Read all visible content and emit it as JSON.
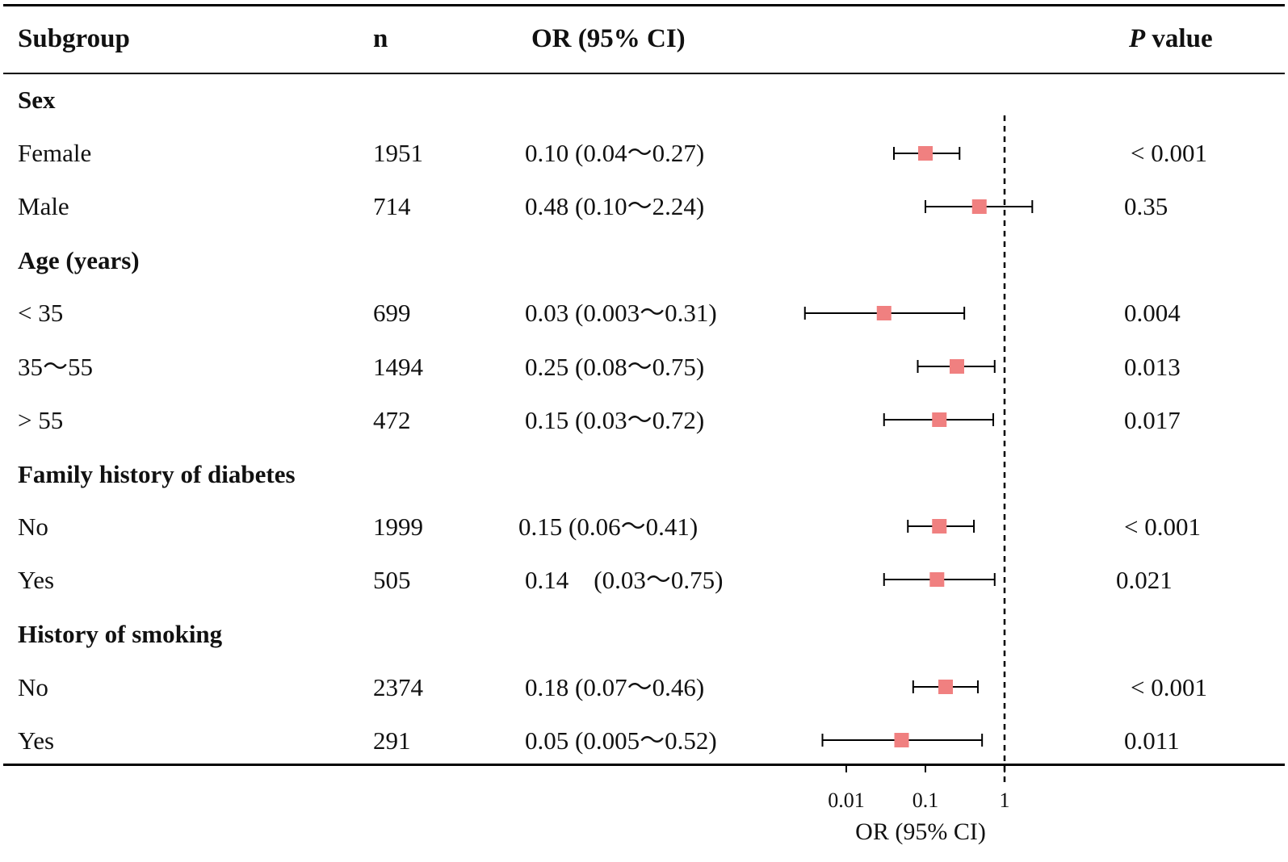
{
  "header": {
    "subgroup": "Subgroup",
    "n": "n",
    "or_ci": "OR (95% CI)",
    "p_italic": "P",
    "p_rest": " value"
  },
  "rows": [
    {
      "kind": "group",
      "label": "Sex"
    },
    {
      "kind": "item",
      "label": "Female",
      "n": "1951",
      "ci_text": "0.10 (0.04～0.27)",
      "p": "< 0.001"
    },
    {
      "kind": "item",
      "label": "Male",
      "n": "714",
      "ci_text": "0.48 (0.10～2.24)",
      "p": "0.35"
    },
    {
      "kind": "group",
      "label": "Age (years)"
    },
    {
      "kind": "item",
      "label": " < 35",
      "n": "699",
      "ci_text": "0.03 (0.003～0.31)",
      "p": "0.004"
    },
    {
      "kind": "item",
      "label": "35～55",
      "n": "1494",
      "ci_text": "0.25 (0.08～0.75)",
      "p": "0.013"
    },
    {
      "kind": "item",
      "label": " > 55",
      "n": "472",
      "ci_text": "0.15 (0.03～0.72)",
      "p": "0.017"
    },
    {
      "kind": "group",
      "label": "Family history of diabetes"
    },
    {
      "kind": "item",
      "label": "No",
      "n": "1999",
      "ci_text": "0.15 (0.06～0.41)",
      "p": "< 0.001"
    },
    {
      "kind": "item",
      "label": "Yes",
      "n": "505",
      "ci_text": "0.14　(0.03～0.75)",
      "p": "0.021"
    },
    {
      "kind": "group",
      "label": "History of smoking"
    },
    {
      "kind": "item",
      "label": "No",
      "n": "2374",
      "ci_text": "0.18 (0.07～0.46)",
      "p": "< 0.001"
    },
    {
      "kind": "item",
      "label": "Yes",
      "n": "291",
      "ci_text": "0.05 (0.005～0.52)",
      "p": "0.011"
    }
  ],
  "chart_data": {
    "type": "scatter",
    "subtype": "forest",
    "scale": "log10",
    "x_ticks": [
      0.01,
      0.1,
      1
    ],
    "x_tick_labels": [
      "0.01",
      "0.1",
      "1"
    ],
    "reference_line": 1,
    "xlabel": "OR (95% CI)",
    "marker_color": "#f08080",
    "series": [
      {
        "name": "Female",
        "or": 0.1,
        "lower": 0.04,
        "upper": 0.27
      },
      {
        "name": "Male",
        "or": 0.48,
        "lower": 0.1,
        "upper": 2.24
      },
      {
        "name": "< 35",
        "or": 0.03,
        "lower": 0.003,
        "upper": 0.31
      },
      {
        "name": "35～55",
        "or": 0.25,
        "lower": 0.08,
        "upper": 0.75
      },
      {
        "name": "> 55",
        "or": 0.15,
        "lower": 0.03,
        "upper": 0.72
      },
      {
        "name": "Family history No",
        "or": 0.15,
        "lower": 0.06,
        "upper": 0.41
      },
      {
        "name": "Family history Yes",
        "or": 0.14,
        "lower": 0.03,
        "upper": 0.75
      },
      {
        "name": "Smoking No",
        "or": 0.18,
        "lower": 0.07,
        "upper": 0.46
      },
      {
        "name": "Smoking Yes",
        "or": 0.05,
        "lower": 0.005,
        "upper": 0.52
      }
    ]
  }
}
